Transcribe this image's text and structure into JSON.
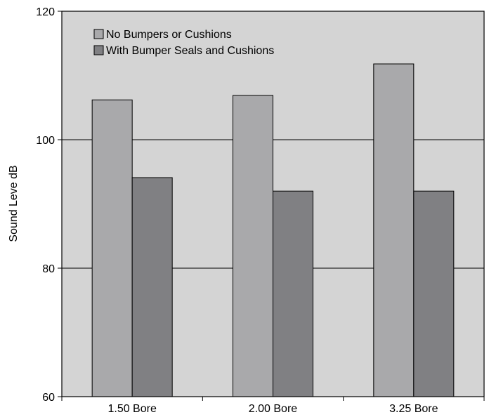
{
  "chart_data": {
    "type": "bar",
    "title": "",
    "xlabel": "",
    "ylabel": "Sound Leve  dB",
    "categories": [
      "1.50 Bore",
      "2.00 Bore",
      "3.25 Bore"
    ],
    "series": [
      {
        "name": "No Bumpers or Cushions",
        "values": [
          106.2,
          106.9,
          111.8
        ],
        "color": "#a9a9ab"
      },
      {
        "name": "With Bumper Seals and Cushions",
        "values": [
          94.1,
          92.0,
          92.0
        ],
        "color": "#808083"
      }
    ],
    "ylim": [
      60,
      120
    ],
    "yticks": [
      "60",
      "80",
      "100",
      "120"
    ],
    "grid": true,
    "legend_position": "top-left",
    "plot_background": "#d4d4d4"
  }
}
